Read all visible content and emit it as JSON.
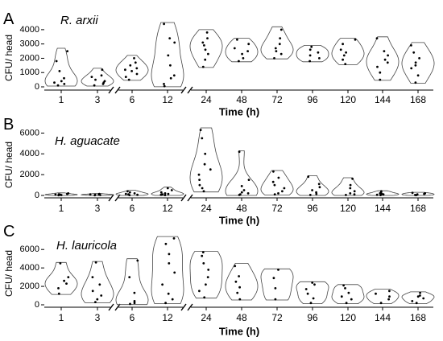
{
  "chart_data": [
    {
      "type": "violin",
      "panel_label": "A",
      "title": "R. arxii",
      "xlabel": "Time (h)",
      "ylabel": "CFU/ head",
      "ylim": [
        0,
        4500
      ],
      "yticks": [
        0,
        1000,
        2000,
        3000,
        4000
      ],
      "categories": [
        "1",
        "3",
        "6",
        "12",
        "24",
        "48",
        "72",
        "96",
        "120",
        "144",
        "168"
      ],
      "axis_breaks_after": [
        "3",
        "12"
      ],
      "groups": [
        {
          "x": "1",
          "points": [
            100,
            200,
            300,
            400,
            600,
            1100,
            1800,
            2500
          ],
          "max": 2700
        },
        {
          "x": "3",
          "points": [
            100,
            200,
            300,
            400,
            500,
            700,
            800,
            1200
          ],
          "max": 1300
        },
        {
          "x": "6",
          "points": [
            500,
            700,
            900,
            1100,
            1200,
            1300,
            1500,
            1700,
            2000
          ],
          "max": 2200
        },
        {
          "x": "12",
          "points": [
            50,
            200,
            600,
            800,
            1500,
            2200,
            3100,
            3400,
            4400
          ],
          "max": 4500
        },
        {
          "x": "24",
          "points": [
            1400,
            1900,
            2300,
            2600,
            2900,
            3100,
            3400,
            3800
          ],
          "max": 4000
        },
        {
          "x": "48",
          "points": [
            1800,
            2000,
            2300,
            2500,
            2700,
            3000,
            3300
          ],
          "max": 3400
        },
        {
          "x": "72",
          "points": [
            2000,
            2300,
            2500,
            2700,
            3000,
            3400,
            4000
          ],
          "max": 4200
        },
        {
          "x": "96",
          "points": [
            1800,
            2000,
            2200,
            2400,
            2600,
            2800
          ],
          "max": 2900
        },
        {
          "x": "120",
          "points": [
            1600,
            1900,
            2200,
            2400,
            2600,
            3000,
            3300
          ],
          "max": 3400
        },
        {
          "x": "144",
          "points": [
            500,
            1000,
            1400,
            1700,
            1900,
            2200,
            2500,
            3400
          ],
          "max": 3500
        },
        {
          "x": "168",
          "points": [
            300,
            800,
            1300,
            1500,
            1700,
            2000,
            2400,
            2900
          ],
          "max": 3100
        }
      ]
    },
    {
      "type": "violin",
      "panel_label": "B",
      "title": "H. aguacate",
      "xlabel": "Time (h)",
      "ylabel": "CFU/ head",
      "ylim": [
        0,
        6500
      ],
      "yticks": [
        0,
        2000,
        4000,
        6000
      ],
      "categories": [
        "1",
        "3",
        "6",
        "12",
        "24",
        "48",
        "72",
        "96",
        "120",
        "144",
        "168"
      ],
      "axis_breaks_after": [
        "3",
        "12"
      ],
      "groups": [
        {
          "x": "1",
          "points": [
            20,
            40,
            60,
            80,
            100,
            150,
            200
          ],
          "max": 250
        },
        {
          "x": "3",
          "points": [
            20,
            40,
            60,
            80,
            100,
            150
          ],
          "max": 200
        },
        {
          "x": "6",
          "points": [
            30,
            60,
            100,
            150,
            200,
            300,
            400
          ],
          "max": 500
        },
        {
          "x": "12",
          "points": [
            30,
            60,
            100,
            150,
            200,
            300,
            500,
            700
          ],
          "max": 800
        },
        {
          "x": "24",
          "points": [
            400,
            700,
            1000,
            1500,
            2000,
            2500,
            3000,
            4000,
            5500,
            6300
          ],
          "max": 6500
        },
        {
          "x": "48",
          "points": [
            50,
            100,
            200,
            300,
            500,
            900,
            1500,
            4200
          ],
          "max": 4300
        },
        {
          "x": "72",
          "points": [
            100,
            200,
            400,
            700,
            1000,
            1300,
            1700,
            2300
          ],
          "max": 2400
        },
        {
          "x": "96",
          "points": [
            50,
            150,
            300,
            500,
            800,
            1100,
            1800
          ],
          "max": 1900
        },
        {
          "x": "120",
          "points": [
            50,
            100,
            200,
            400,
            700,
            1000,
            1600
          ],
          "max": 1700
        },
        {
          "x": "144",
          "points": [
            30,
            60,
            100,
            150,
            200,
            300,
            400
          ],
          "max": 450
        },
        {
          "x": "168",
          "points": [
            30,
            50,
            100,
            150,
            200,
            250
          ],
          "max": 300
        }
      ]
    },
    {
      "type": "violin",
      "panel_label": "C",
      "title": "H. lauricola",
      "xlabel": "Time (h)",
      "ylabel": "CFU/ head",
      "ylim": [
        0,
        7500
      ],
      "yticks": [
        0,
        2000,
        4000,
        6000
      ],
      "categories": [
        "1",
        "3",
        "6",
        "12",
        "24",
        "48",
        "72",
        "96",
        "120",
        "144",
        "168"
      ],
      "axis_breaks_after": [
        "3",
        "12"
      ],
      "groups": [
        {
          "x": "1",
          "points": [
            1200,
            1800,
            2300,
            2600,
            3000,
            4500
          ],
          "max": 4600
        },
        {
          "x": "3",
          "points": [
            300,
            600,
            1000,
            1500,
            2200,
            3000,
            4600
          ],
          "max": 4700
        },
        {
          "x": "6",
          "points": [
            100,
            200,
            400,
            1300,
            3000,
            4800
          ],
          "max": 5000
        },
        {
          "x": "12",
          "points": [
            200,
            600,
            1200,
            2200,
            3500,
            4500,
            5500,
            6600,
            7200
          ],
          "max": 7400
        },
        {
          "x": "24",
          "points": [
            800,
            1500,
            2200,
            3000,
            3800,
            4500,
            5300,
            5700
          ],
          "max": 5800
        },
        {
          "x": "48",
          "points": [
            600,
            1300,
            1900,
            2500,
            3100,
            4200
          ],
          "max": 4500
        },
        {
          "x": "72",
          "points": [
            600,
            1800,
            2900,
            3800
          ],
          "max": 3900
        },
        {
          "x": "96",
          "points": [
            200,
            700,
            1200,
            1700,
            2200,
            2400
          ],
          "max": 2500
        },
        {
          "x": "120",
          "points": [
            200,
            600,
            900,
            1300,
            1800,
            2100
          ],
          "max": 2200
        },
        {
          "x": "144",
          "points": [
            200,
            600,
            900,
            1200,
            1500
          ],
          "max": 1700
        },
        {
          "x": "168",
          "points": [
            200,
            400,
            700,
            900,
            1000,
            1300
          ],
          "max": 1400
        }
      ]
    }
  ]
}
